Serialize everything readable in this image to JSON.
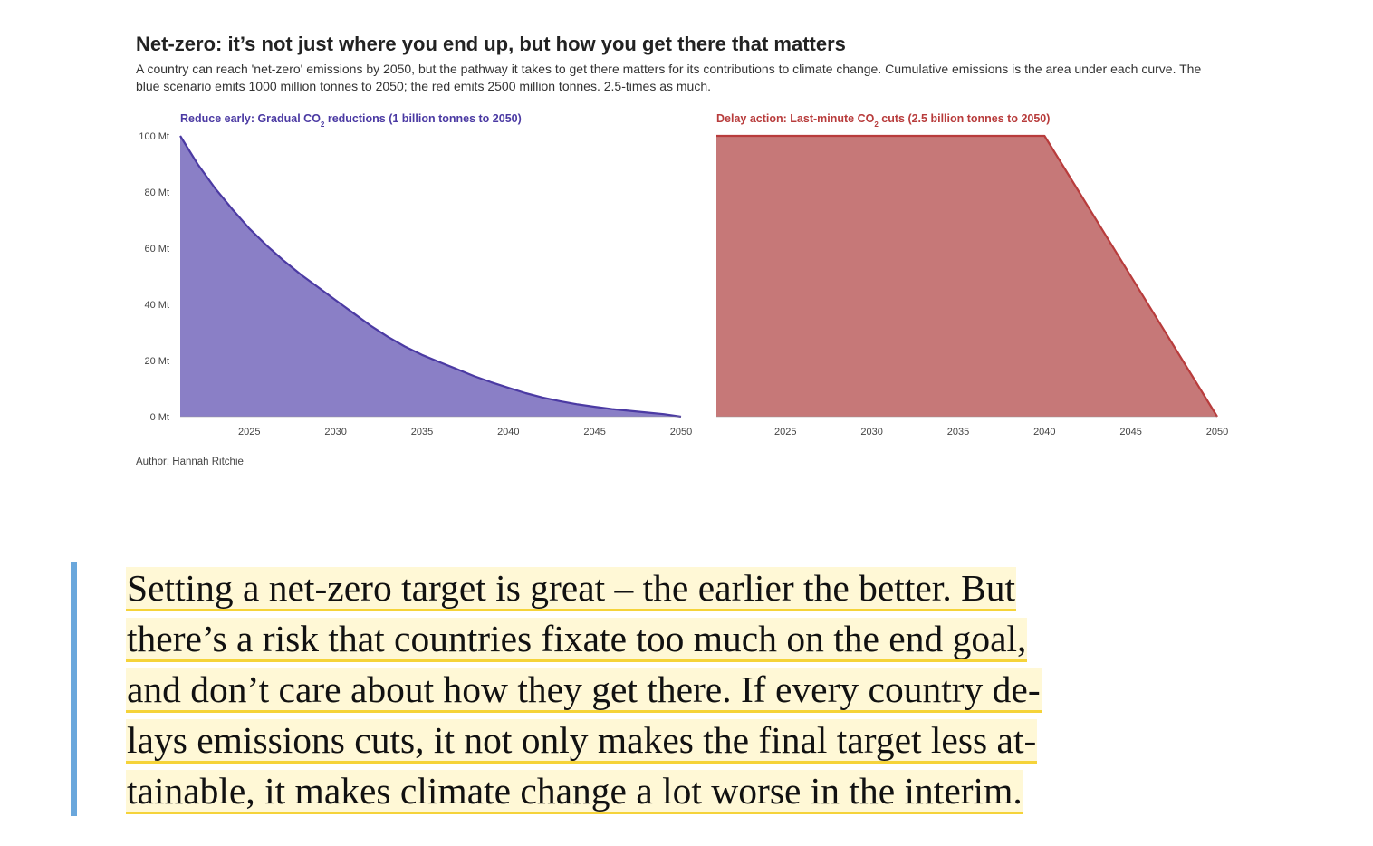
{
  "figure": {
    "title": "Net-zero: it’s not just where you end up, but how you get there that matters",
    "subtitle": "A country can reach 'net-zero' emissions by 2050, but the pathway it takes to get there matters for its contributions to climate change. Cumulative emissions is the area under each curve. The blue scenario emits 1000 million tonnes to 2050; the red emits 2500 million tonnes. 2.5-times as much.",
    "author": "Author: Hannah Ritchie"
  },
  "colors": {
    "blue_fill": "#8a7fc6",
    "blue_line": "#4b3aa3",
    "red_fill": "#c67878",
    "red_line": "#b83c3c",
    "quote_bar": "#6aa7dc",
    "highlight": "#fff8d6",
    "underline": "#f5d33a"
  },
  "chart_data": [
    {
      "type": "area",
      "title_parts": [
        "Reduce early: Gradual CO",
        "2",
        " reductions (1 billion tonnes to 2050)"
      ],
      "x": [
        2021,
        2022,
        2023,
        2024,
        2025,
        2026,
        2027,
        2028,
        2029,
        2030,
        2031,
        2032,
        2033,
        2034,
        2035,
        2036,
        2037,
        2038,
        2039,
        2040,
        2041,
        2042,
        2043,
        2044,
        2045,
        2046,
        2047,
        2048,
        2049,
        2050
      ],
      "y": [
        100,
        90,
        81.5,
        74,
        67,
        61,
        55.5,
        50.5,
        46,
        41.5,
        37,
        32.5,
        28.5,
        25,
        22,
        19.5,
        17,
        14.5,
        12.3,
        10.3,
        8.4,
        6.8,
        5.5,
        4.4,
        3.5,
        2.7,
        2.1,
        1.5,
        0.9,
        0
      ],
      "xticks": [
        "2025",
        "2030",
        "2035",
        "2040",
        "2045",
        "2050"
      ],
      "yticks": [
        "0 Mt",
        "20 Mt",
        "40 Mt",
        "60 Mt",
        "80 Mt",
        "100 Mt"
      ],
      "xlim": [
        2021,
        2050
      ],
      "ylim": [
        0,
        100
      ],
      "grid": false
    },
    {
      "type": "area",
      "title_parts": [
        "Delay action: Last-minute CO",
        "2",
        " cuts (2.5 billion tonnes to 2050)"
      ],
      "x": [
        2021,
        2030,
        2040,
        2041,
        2050
      ],
      "y": [
        100,
        100,
        100,
        90,
        0
      ],
      "xticks": [
        "2025",
        "2030",
        "2035",
        "2040",
        "2045",
        "2050"
      ],
      "xlim": [
        2021,
        2050
      ],
      "ylim": [
        0,
        100
      ],
      "grid": false
    }
  ],
  "quote": {
    "lines": [
      "Setting a net-zero target is great – the earlier the better. But",
      "there’s a risk that countries fixate too much on the end goal,",
      "and don’t care about how they get there. If every country de-",
      "lays emissions cuts, it not only makes the final target less at-",
      "tainable, it makes climate change a lot worse in the interim."
    ]
  }
}
